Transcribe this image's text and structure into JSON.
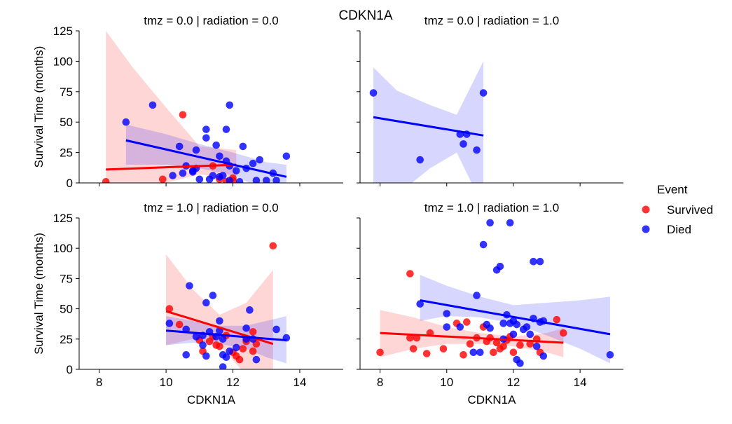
{
  "chart_data": {
    "type": "scatter",
    "title": "CDKN1A",
    "xlabel": "CDKN1A",
    "ylabel": "Survival Time (months)",
    "xlim": [
      7.4,
      15.3
    ],
    "ylim": [
      0,
      125
    ],
    "x_ticks": [
      "8",
      "10",
      "12",
      "14"
    ],
    "y_ticks": [
      "0",
      "25",
      "50",
      "75",
      "100",
      "125"
    ],
    "grid": false,
    "legend": {
      "title": "Event",
      "placement": "right",
      "entries": [
        {
          "label": "Survived",
          "color": "#ff0000"
        },
        {
          "label": "Died",
          "color": "#0000ff"
        }
      ]
    },
    "colors": {
      "survived": "#ff0000",
      "died": "#0000ff"
    },
    "panels": [
      {
        "title": "tmz = 0.0 | radiation = 0.0",
        "series": [
          {
            "name": "Survived",
            "points": [
              [
                8.2,
                1
              ],
              [
                9.9,
                3
              ],
              [
                10.5,
                56
              ],
              [
                11.4,
                14
              ],
              [
                11.6,
                3
              ],
              [
                12.0,
                4
              ],
              [
                12.0,
                2
              ],
              [
                11.8,
                1
              ]
            ],
            "fit": [
              [
                8.2,
                11
              ],
              [
                12.1,
                15
              ]
            ],
            "ci": {
              "x": [
                8.2,
                9.0,
                10.0,
                11.0,
                12.1
              ],
              "lo": [
                -20,
                -10,
                0,
                7,
                3
              ],
              "hi": [
                125,
                95,
                62,
                30,
                27
              ]
            }
          },
          {
            "name": "Died",
            "points": [
              [
                8.8,
                50
              ],
              [
                9.6,
                64
              ],
              [
                10.2,
                6
              ],
              [
                10.4,
                30
              ],
              [
                10.5,
                8
              ],
              [
                10.6,
                14
              ],
              [
                10.8,
                10
              ],
              [
                10.8,
                9
              ],
              [
                10.9,
                12
              ],
              [
                10.9,
                27
              ],
              [
                11.0,
                3
              ],
              [
                11.2,
                37
              ],
              [
                11.2,
                44
              ],
              [
                11.3,
                3
              ],
              [
                11.4,
                6
              ],
              [
                11.5,
                31
              ],
              [
                11.6,
                22
              ],
              [
                11.6,
                5
              ],
              [
                11.7,
                6
              ],
              [
                11.8,
                44
              ],
              [
                11.8,
                18
              ],
              [
                11.9,
                64
              ],
              [
                11.9,
                2
              ],
              [
                11.9,
                14
              ],
              [
                12.1,
                10
              ],
              [
                12.2,
                1
              ],
              [
                12.3,
                30
              ],
              [
                12.4,
                12
              ],
              [
                12.6,
                16
              ],
              [
                12.7,
                2
              ],
              [
                12.8,
                19
              ],
              [
                13.0,
                2
              ],
              [
                13.2,
                8
              ],
              [
                13.3,
                2
              ],
              [
                13.6,
                22
              ]
            ],
            "fit": [
              [
                8.8,
                35
              ],
              [
                13.6,
                5
              ]
            ],
            "ci": {
              "x": [
                8.8,
                10.0,
                11.0,
                12.0,
                13.0,
                13.6
              ],
              "lo": [
                15,
                15,
                12,
                6,
                -6,
                -15
              ],
              "hi": [
                48,
                40,
                32,
                25,
                17,
                15
              ]
            }
          }
        ]
      },
      {
        "title": "tmz = 0.0 | radiation = 1.0",
        "series": [
          {
            "name": "Survived",
            "points": [],
            "fit": [],
            "ci": null
          },
          {
            "name": "Died",
            "points": [
              [
                7.8,
                74
              ],
              [
                9.2,
                19
              ],
              [
                10.4,
                40
              ],
              [
                10.5,
                32
              ],
              [
                10.6,
                40
              ],
              [
                10.9,
                27
              ],
              [
                11.1,
                74
              ]
            ],
            "fit": [
              [
                7.8,
                54
              ],
              [
                11.1,
                39
              ]
            ],
            "ci": {
              "x": [
                7.8,
                8.5,
                9.5,
                10.3,
                11.1
              ],
              "lo": [
                -20,
                -10,
                12,
                25,
                -20
              ],
              "hi": [
                95,
                76,
                64,
                56,
                100
              ]
            }
          }
        ]
      },
      {
        "title": "tmz = 1.0 | radiation = 0.0",
        "series": [
          {
            "name": "Survived",
            "points": [
              [
                10.1,
                50
              ],
              [
                10.4,
                37
              ],
              [
                11.0,
                24
              ],
              [
                11.1,
                15
              ],
              [
                11.3,
                23
              ],
              [
                11.4,
                27
              ],
              [
                11.5,
                20
              ],
              [
                11.6,
                19
              ],
              [
                11.8,
                28
              ],
              [
                12.0,
                14
              ],
              [
                12.1,
                11
              ],
              [
                12.2,
                8
              ],
              [
                12.3,
                17
              ],
              [
                12.4,
                23
              ],
              [
                12.6,
                15
              ],
              [
                12.6,
                31
              ],
              [
                12.7,
                21
              ],
              [
                13.2,
                102
              ]
            ],
            "fit": [
              [
                10.0,
                48
              ],
              [
                13.2,
                21
              ]
            ],
            "ci": {
              "x": [
                10.0,
                10.8,
                11.6,
                12.4,
                13.2
              ],
              "lo": [
                20,
                25,
                20,
                -5,
                -30
              ],
              "hi": [
                95,
                66,
                45,
                55,
                82
              ]
            }
          },
          {
            "name": "Died",
            "points": [
              [
                10.1,
                38
              ],
              [
                10.6,
                12
              ],
              [
                10.6,
                33
              ],
              [
                10.7,
                69
              ],
              [
                10.9,
                27
              ],
              [
                11.1,
                20
              ],
              [
                11.1,
                28
              ],
              [
                11.2,
                55
              ],
              [
                11.2,
                11
              ],
              [
                11.3,
                31
              ],
              [
                11.4,
                61
              ],
              [
                11.5,
                27
              ],
              [
                11.6,
                32
              ],
              [
                11.6,
                40
              ],
              [
                11.7,
                25
              ],
              [
                11.7,
                12
              ],
              [
                11.7,
                2
              ],
              [
                11.8,
                10
              ],
              [
                11.9,
                15
              ],
              [
                12.1,
                18
              ],
              [
                12.4,
                34
              ],
              [
                12.4,
                25
              ],
              [
                12.5,
                49
              ],
              [
                12.6,
                25
              ],
              [
                12.7,
                8
              ],
              [
                13.3,
                33
              ],
              [
                13.6,
                26
              ]
            ],
            "fit": [
              [
                10.0,
                32
              ],
              [
                13.6,
                24
              ]
            ],
            "ci": {
              "x": [
                10.0,
                10.8,
                11.6,
                12.4,
                13.0,
                13.6
              ],
              "lo": [
                20,
                22,
                21,
                17,
                10,
                5
              ],
              "hi": [
                44,
                40,
                36,
                36,
                40,
                44
              ]
            }
          }
        ]
      },
      {
        "title": "tmz = 1.0 | radiation = 1.0",
        "series": [
          {
            "name": "Survived",
            "points": [
              [
                8.0,
                14
              ],
              [
                8.9,
                79
              ],
              [
                8.9,
                26
              ],
              [
                9.0,
                17
              ],
              [
                9.1,
                26
              ],
              [
                9.4,
                13
              ],
              [
                9.5,
                30
              ],
              [
                9.9,
                17
              ],
              [
                10.3,
                38
              ],
              [
                10.5,
                12
              ],
              [
                10.6,
                39
              ],
              [
                10.7,
                21
              ],
              [
                10.9,
                26
              ],
              [
                11.1,
                35
              ],
              [
                11.2,
                23
              ],
              [
                11.3,
                26
              ],
              [
                11.4,
                14
              ],
              [
                11.5,
                22
              ],
              [
                11.6,
                17
              ],
              [
                11.7,
                19
              ],
              [
                11.8,
                24
              ],
              [
                11.9,
                27
              ],
              [
                12.0,
                14
              ],
              [
                12.2,
                20
              ],
              [
                12.5,
                21
              ],
              [
                12.7,
                25
              ],
              [
                12.8,
                14
              ],
              [
                13.3,
                41
              ],
              [
                13.5,
                30
              ]
            ],
            "fit": [
              [
                8.0,
                30
              ],
              [
                13.5,
                22
              ]
            ],
            "ci": {
              "x": [
                8.0,
                9.0,
                10.0,
                11.0,
                12.0,
                13.0,
                13.5
              ],
              "lo": [
                10,
                17,
                21,
                21,
                19,
                14,
                10
              ],
              "hi": [
                49,
                43,
                35,
                30,
                27,
                30,
                34
              ]
            }
          },
          {
            "name": "Died",
            "points": [
              [
                9.2,
                54
              ],
              [
                10.0,
                46
              ],
              [
                10.0,
                35
              ],
              [
                10.4,
                35
              ],
              [
                10.8,
                14
              ],
              [
                10.9,
                61
              ],
              [
                11.0,
                14
              ],
              [
                11.1,
                103
              ],
              [
                11.2,
                37
              ],
              [
                11.3,
                121
              ],
              [
                11.3,
                34
              ],
              [
                11.5,
                82
              ],
              [
                11.6,
                85
              ],
              [
                11.7,
                25
              ],
              [
                11.7,
                38
              ],
              [
                11.8,
                45
              ],
              [
                11.9,
                121
              ],
              [
                11.9,
                38
              ],
              [
                12.0,
                29
              ],
              [
                12.0,
                40
              ],
              [
                12.1,
                8
              ],
              [
                12.1,
                37
              ],
              [
                12.2,
                5
              ],
              [
                12.3,
                33
              ],
              [
                12.4,
                35
              ],
              [
                12.5,
                29
              ],
              [
                12.6,
                42
              ],
              [
                12.6,
                89
              ],
              [
                12.7,
                19
              ],
              [
                12.8,
                89
              ],
              [
                12.9,
                11
              ],
              [
                12.8,
                39
              ],
              [
                12.9,
                40
              ],
              [
                14.9,
                12
              ]
            ],
            "fit": [
              [
                9.2,
                57
              ],
              [
                14.9,
                29
              ]
            ],
            "ci": {
              "x": [
                9.2,
                10.0,
                11.0,
                12.0,
                13.0,
                14.0,
                14.9
              ],
              "lo": [
                40,
                44,
                43,
                38,
                28,
                17,
                5
              ],
              "hi": [
                78,
                69,
                60,
                53,
                55,
                57,
                60
              ]
            }
          }
        ]
      }
    ]
  }
}
